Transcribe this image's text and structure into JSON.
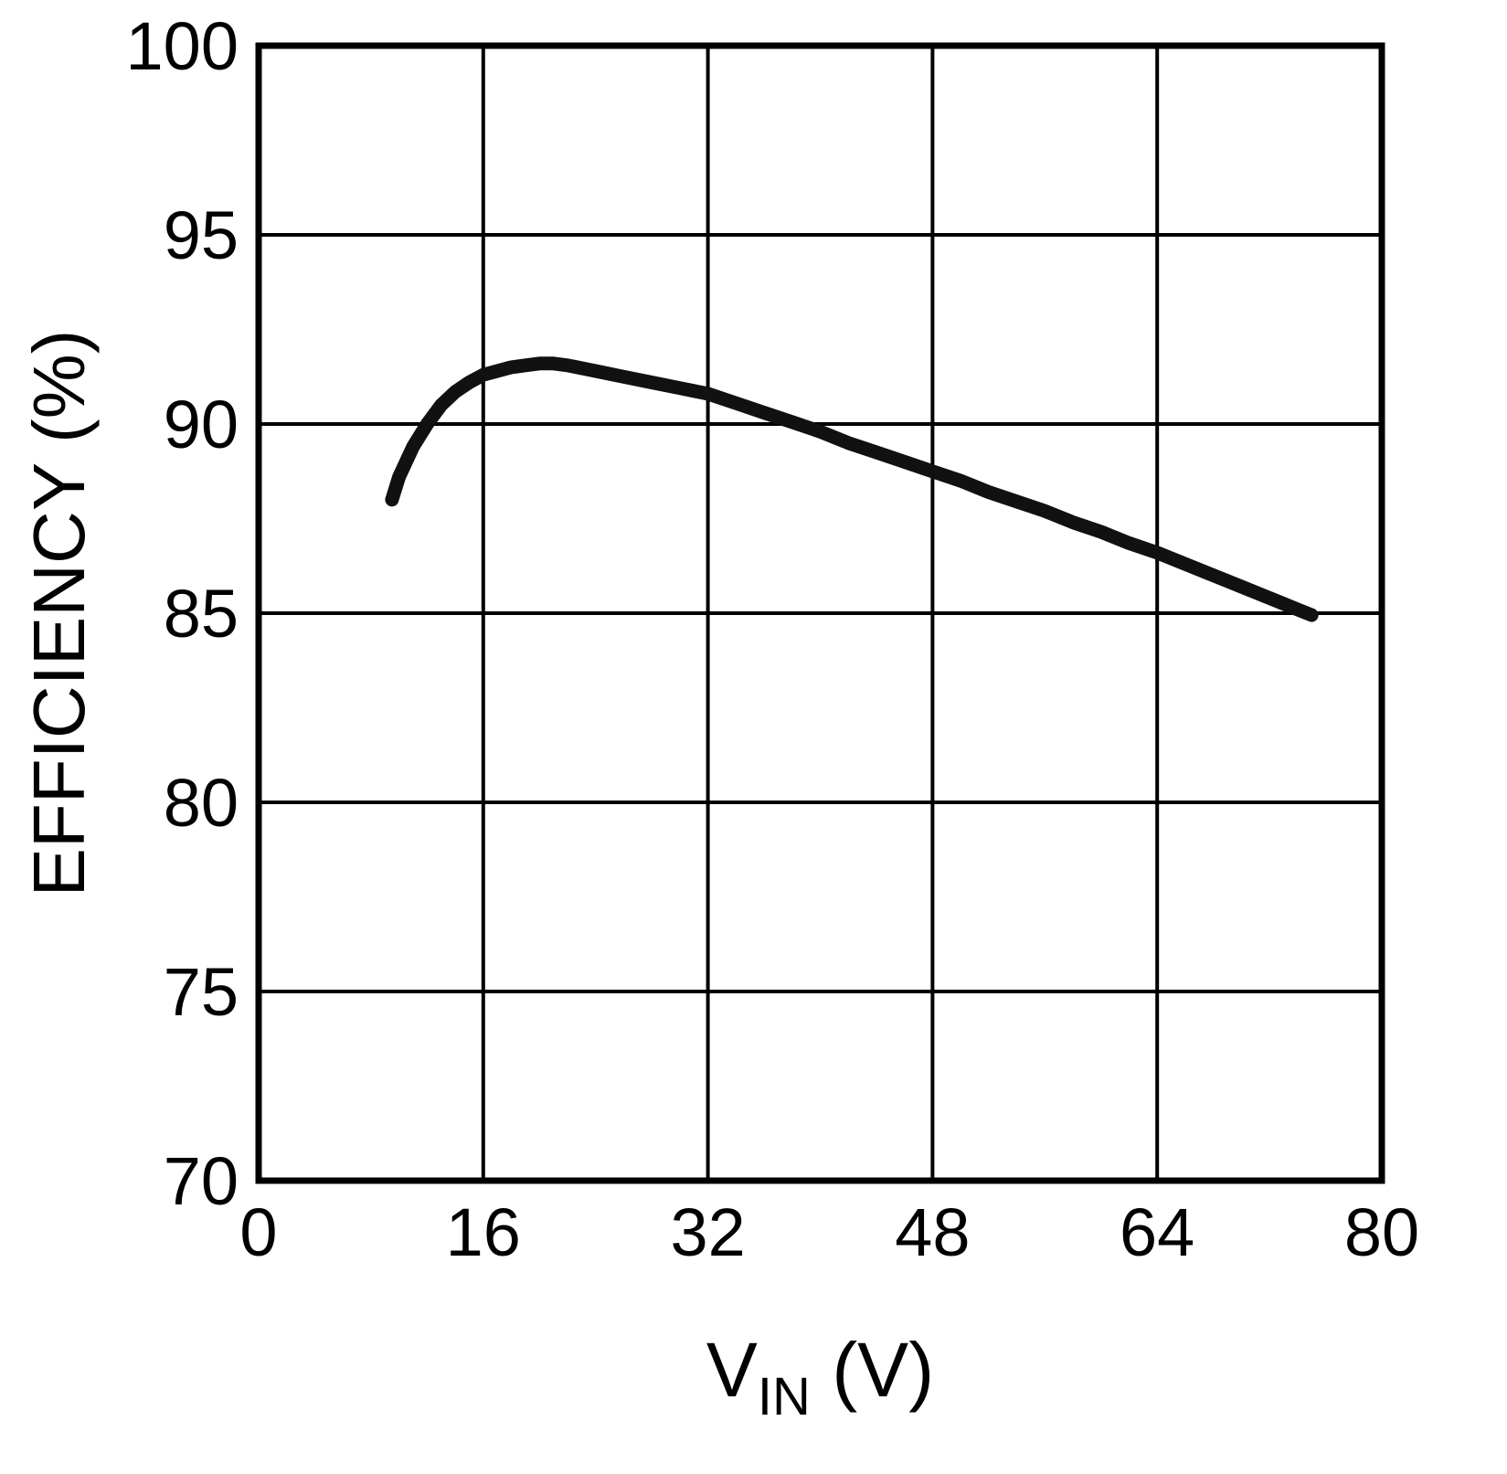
{
  "chart_data": {
    "type": "line",
    "title": "",
    "xlabel": "VIN (V)",
    "xlabel_parts": {
      "main": "V",
      "sub": "IN",
      "rest": " (V)"
    },
    "ylabel": "EFFICIENCY (%)",
    "xlim": [
      0,
      80
    ],
    "ylim": [
      70,
      100
    ],
    "x_ticks": [
      0,
      16,
      32,
      48,
      64,
      80
    ],
    "y_ticks": [
      70,
      75,
      80,
      85,
      90,
      95,
      100
    ],
    "grid": true,
    "legend": "none",
    "line_color": "#111111",
    "grid_color": "#000000",
    "background": "#ffffff",
    "series": [
      {
        "name": "efficiency-vs-vin",
        "x": [
          9.5,
          10,
          11,
          12,
          13,
          14,
          15,
          16,
          17,
          18,
          19,
          20,
          21,
          22,
          24,
          26,
          28,
          30,
          32,
          34,
          36,
          38,
          40,
          42,
          44,
          46,
          48,
          50,
          52,
          54,
          56,
          58,
          60,
          62,
          64,
          66,
          68,
          70,
          72,
          74,
          75
        ],
        "y": [
          88.0,
          88.6,
          89.4,
          90.0,
          90.5,
          90.85,
          91.1,
          91.3,
          91.4,
          91.5,
          91.55,
          91.6,
          91.6,
          91.55,
          91.4,
          91.25,
          91.1,
          90.95,
          90.8,
          90.55,
          90.3,
          90.05,
          89.8,
          89.5,
          89.25,
          89.0,
          88.75,
          88.5,
          88.2,
          87.95,
          87.7,
          87.4,
          87.15,
          86.85,
          86.6,
          86.3,
          86.0,
          85.7,
          85.4,
          85.1,
          84.95
        ]
      }
    ]
  }
}
